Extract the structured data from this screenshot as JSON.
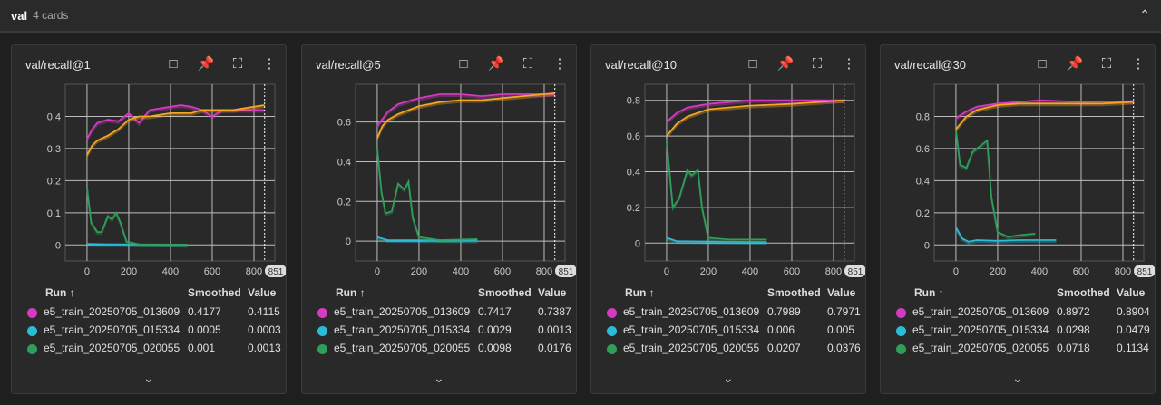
{
  "header": {
    "title": "val",
    "count": "4 cards",
    "collapse_icon": "chevron-up-icon"
  },
  "table_headers": {
    "run": "Run ↑",
    "smoothed": "Smoothed",
    "value": "Value"
  },
  "run_colors": [
    "#d63ac2",
    "#2bbcd8",
    "#2e9e5a",
    "#f5a623"
  ],
  "cards": [
    {
      "title": "val/recall@1",
      "step_badge": "851",
      "rows": [
        {
          "run": "e5_train_20250705_013609",
          "smoothed": "0.4177",
          "value": "0.4115"
        },
        {
          "run": "e5_train_20250705_015334",
          "smoothed": "0.0005",
          "value": "0.0003"
        },
        {
          "run": "e5_train_20250705_020055",
          "smoothed": "0.001",
          "value": "0.0013"
        }
      ]
    },
    {
      "title": "val/recall@5",
      "step_badge": "851",
      "rows": [
        {
          "run": "e5_train_20250705_013609",
          "smoothed": "0.7417",
          "value": "0.7387"
        },
        {
          "run": "e5_train_20250705_015334",
          "smoothed": "0.0029",
          "value": "0.0013"
        },
        {
          "run": "e5_train_20250705_020055",
          "smoothed": "0.0098",
          "value": "0.0176"
        }
      ]
    },
    {
      "title": "val/recall@10",
      "step_badge": "851",
      "rows": [
        {
          "run": "e5_train_20250705_013609",
          "smoothed": "0.7989",
          "value": "0.7971"
        },
        {
          "run": "e5_train_20250705_015334",
          "smoothed": "0.006",
          "value": "0.005"
        },
        {
          "run": "e5_train_20250705_020055",
          "smoothed": "0.0207",
          "value": "0.0376"
        }
      ]
    },
    {
      "title": "val/recall@30",
      "step_badge": "851",
      "rows": [
        {
          "run": "e5_train_20250705_013609",
          "smoothed": "0.8972",
          "value": "0.8904"
        },
        {
          "run": "e5_train_20250705_015334",
          "smoothed": "0.0298",
          "value": "0.0479"
        },
        {
          "run": "e5_train_20250705_020055",
          "smoothed": "0.0718",
          "value": "0.1134"
        }
      ]
    }
  ],
  "chart_data": [
    {
      "type": "line",
      "title": "val/recall@1",
      "xlim": [
        -104,
        900
      ],
      "ylim": [
        -0.05,
        0.5
      ],
      "xticks": [
        0,
        200,
        400,
        600,
        800
      ],
      "yticks": [
        0,
        0.1,
        0.2,
        0.3,
        0.4
      ],
      "grid": true,
      "marker_step": 851,
      "series": [
        {
          "name": "e5_train_20250705_013609",
          "points": [
            [
              0,
              0.33
            ],
            [
              25,
              0.36
            ],
            [
              50,
              0.38
            ],
            [
              100,
              0.39
            ],
            [
              150,
              0.385
            ],
            [
              200,
              0.41
            ],
            [
              250,
              0.38
            ],
            [
              300,
              0.42
            ],
            [
              400,
              0.43
            ],
            [
              450,
              0.435
            ],
            [
              500,
              0.43
            ],
            [
              550,
              0.42
            ],
            [
              600,
              0.4
            ],
            [
              650,
              0.42
            ],
            [
              700,
              0.42
            ],
            [
              800,
              0.42
            ],
            [
              851,
              0.42
            ]
          ]
        },
        {
          "name": "e5_train_20250705_015334",
          "points": [
            [
              0,
              0.003
            ],
            [
              100,
              0.002
            ],
            [
              480,
              0.0005
            ]
          ]
        },
        {
          "name": "e5_train_20250705_020055",
          "points": [
            [
              0,
              0.18
            ],
            [
              20,
              0.07
            ],
            [
              50,
              0.04
            ],
            [
              70,
              0.04
            ],
            [
              100,
              0.09
            ],
            [
              120,
              0.08
            ],
            [
              140,
              0.1
            ],
            [
              160,
              0.07
            ],
            [
              190,
              0.01
            ],
            [
              250,
              0.002
            ],
            [
              480,
              0.001
            ]
          ]
        },
        {
          "points": [
            [
              0,
              0.28
            ],
            [
              25,
              0.31
            ],
            [
              50,
              0.325
            ],
            [
              100,
              0.34
            ],
            [
              150,
              0.36
            ],
            [
              200,
              0.39
            ],
            [
              250,
              0.4
            ],
            [
              300,
              0.4
            ],
            [
              350,
              0.405
            ],
            [
              400,
              0.41
            ],
            [
              500,
              0.41
            ],
            [
              550,
              0.42
            ],
            [
              700,
              0.42
            ],
            [
              800,
              0.43
            ],
            [
              851,
              0.435
            ]
          ]
        }
      ]
    },
    {
      "type": "line",
      "title": "val/recall@5",
      "xlim": [
        -104,
        900
      ],
      "ylim": [
        -0.1,
        0.79
      ],
      "xticks": [
        0,
        200,
        400,
        600,
        800
      ],
      "yticks": [
        0,
        0.2,
        0.4,
        0.6
      ],
      "grid": true,
      "marker_step": 851,
      "series": [
        {
          "name": "e5_train_20250705_013609",
          "points": [
            [
              0,
              0.58
            ],
            [
              50,
              0.65
            ],
            [
              100,
              0.69
            ],
            [
              200,
              0.72
            ],
            [
              300,
              0.74
            ],
            [
              400,
              0.74
            ],
            [
              500,
              0.73
            ],
            [
              600,
              0.74
            ],
            [
              700,
              0.74
            ],
            [
              851,
              0.74
            ]
          ]
        },
        {
          "name": "e5_train_20250705_015334",
          "points": [
            [
              0,
              0.02
            ],
            [
              50,
              0.005
            ],
            [
              480,
              0.003
            ]
          ]
        },
        {
          "name": "e5_train_20250705_020055",
          "points": [
            [
              0,
              0.47
            ],
            [
              20,
              0.25
            ],
            [
              40,
              0.14
            ],
            [
              70,
              0.15
            ],
            [
              100,
              0.29
            ],
            [
              130,
              0.26
            ],
            [
              150,
              0.3
            ],
            [
              170,
              0.12
            ],
            [
              200,
              0.02
            ],
            [
              300,
              0.005
            ],
            [
              480,
              0.01
            ]
          ]
        },
        {
          "points": [
            [
              0,
              0.52
            ],
            [
              25,
              0.58
            ],
            [
              50,
              0.61
            ],
            [
              100,
              0.64
            ],
            [
              200,
              0.68
            ],
            [
              300,
              0.7
            ],
            [
              400,
              0.71
            ],
            [
              500,
              0.71
            ],
            [
              600,
              0.72
            ],
            [
              700,
              0.73
            ],
            [
              851,
              0.745
            ]
          ]
        }
      ]
    },
    {
      "type": "line",
      "title": "val/recall@10",
      "xlim": [
        -104,
        900
      ],
      "ylim": [
        -0.1,
        0.89
      ],
      "xticks": [
        0,
        200,
        400,
        600,
        800
      ],
      "yticks": [
        0,
        0.2,
        0.4,
        0.6,
        0.8
      ],
      "grid": true,
      "marker_step": 851,
      "series": [
        {
          "name": "e5_train_20250705_013609",
          "points": [
            [
              0,
              0.68
            ],
            [
              50,
              0.73
            ],
            [
              100,
              0.76
            ],
            [
              200,
              0.78
            ],
            [
              300,
              0.79
            ],
            [
              400,
              0.8
            ],
            [
              500,
              0.8
            ],
            [
              700,
              0.8
            ],
            [
              851,
              0.8
            ]
          ]
        },
        {
          "name": "e5_train_20250705_015334",
          "points": [
            [
              0,
              0.03
            ],
            [
              50,
              0.01
            ],
            [
              480,
              0.006
            ]
          ]
        },
        {
          "name": "e5_train_20250705_020055",
          "points": [
            [
              0,
              0.58
            ],
            [
              30,
              0.2
            ],
            [
              60,
              0.25
            ],
            [
              100,
              0.41
            ],
            [
              120,
              0.38
            ],
            [
              150,
              0.41
            ],
            [
              170,
              0.2
            ],
            [
              200,
              0.03
            ],
            [
              300,
              0.02
            ],
            [
              480,
              0.02
            ]
          ]
        },
        {
          "points": [
            [
              0,
              0.6
            ],
            [
              50,
              0.67
            ],
            [
              100,
              0.71
            ],
            [
              200,
              0.75
            ],
            [
              300,
              0.76
            ],
            [
              400,
              0.77
            ],
            [
              600,
              0.78
            ],
            [
              851,
              0.8
            ]
          ]
        }
      ]
    },
    {
      "type": "line",
      "title": "val/recall@30",
      "xlim": [
        -104,
        900
      ],
      "ylim": [
        -0.1,
        1.0
      ],
      "xticks": [
        0,
        200,
        400,
        600,
        800
      ],
      "yticks": [
        0,
        0.2,
        0.4,
        0.6,
        0.8
      ],
      "grid": true,
      "marker_step": 851,
      "series": [
        {
          "name": "e5_train_20250705_013609",
          "points": [
            [
              0,
              0.79
            ],
            [
              50,
              0.83
            ],
            [
              100,
              0.86
            ],
            [
              200,
              0.88
            ],
            [
              300,
              0.89
            ],
            [
              400,
              0.9
            ],
            [
              600,
              0.89
            ],
            [
              851,
              0.895
            ]
          ]
        },
        {
          "name": "e5_train_20250705_015334",
          "points": [
            [
              0,
              0.11
            ],
            [
              30,
              0.04
            ],
            [
              60,
              0.02
            ],
            [
              100,
              0.03
            ],
            [
              200,
              0.025
            ],
            [
              300,
              0.03
            ],
            [
              480,
              0.03
            ]
          ]
        },
        {
          "name": "e5_train_20250705_020055",
          "points": [
            [
              0,
              0.72
            ],
            [
              20,
              0.5
            ],
            [
              50,
              0.48
            ],
            [
              80,
              0.58
            ],
            [
              120,
              0.62
            ],
            [
              150,
              0.65
            ],
            [
              170,
              0.3
            ],
            [
              200,
              0.08
            ],
            [
              250,
              0.05
            ],
            [
              300,
              0.06
            ],
            [
              380,
              0.07
            ]
          ]
        },
        {
          "points": [
            [
              0,
              0.72
            ],
            [
              50,
              0.8
            ],
            [
              100,
              0.84
            ],
            [
              200,
              0.87
            ],
            [
              300,
              0.88
            ],
            [
              500,
              0.88
            ],
            [
              700,
              0.88
            ],
            [
              851,
              0.89
            ]
          ]
        }
      ]
    }
  ]
}
